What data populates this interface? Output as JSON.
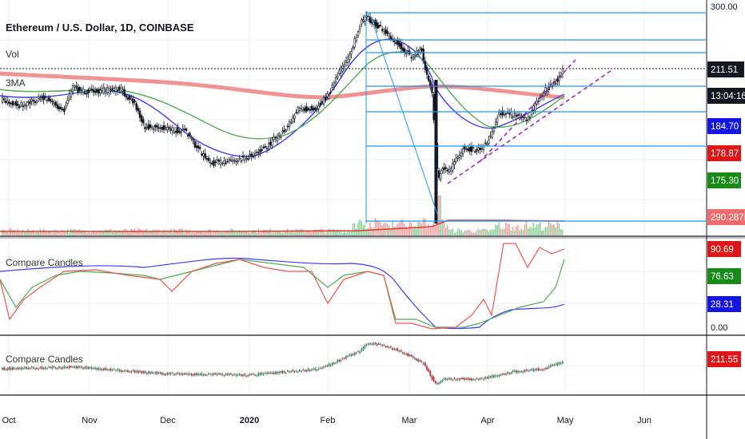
{
  "header": {
    "title": "Ethereum / U.S. Dollar, 1D, COINBASE",
    "vol_label": "Vol",
    "ma_label": "3MA",
    "compare_label_1": "Compare Candles",
    "compare_label_2": "Compare Candles"
  },
  "x_axis": {
    "labels": [
      "Oct",
      "Nov",
      "Dec",
      "2020",
      "Feb",
      "Mar",
      "Apr",
      "May",
      "Jun"
    ]
  },
  "price_axis": {
    "top_tick": "300.00",
    "last_price": "211.51",
    "countdown": "13:04:16",
    "ma_values": [
      {
        "text": "184.70",
        "color": "#1414e6"
      },
      {
        "text": "178.87",
        "color": "#e01616"
      },
      {
        "text": "175.30",
        "color": "#178a17"
      }
    ],
    "volume": "290.287K"
  },
  "osc_axis": {
    "values": [
      {
        "text": "90.69",
        "color": "#e01616"
      },
      {
        "text": "76.63",
        "color": "#178a17"
      },
      {
        "text": "28.31",
        "color": "#1414e6"
      }
    ],
    "zero": "0.00"
  },
  "compare_axis": {
    "value": "211.55",
    "color": "#e01616"
  },
  "colors": {
    "blue_ma": "#3b3bff",
    "red_ma": "#f08080",
    "green_ma": "#4caf50",
    "fib": "#2196f3",
    "trend": "#9c27b0"
  },
  "chart_data": {
    "type": "candlestick",
    "title": "Ethereum / U.S. Dollar, 1D, COINBASE",
    "x_labels": [
      "Oct",
      "Nov",
      "Dec",
      "2020",
      "Feb",
      "Mar",
      "Apr",
      "May",
      "Jun"
    ],
    "y_label_top": 300.0,
    "last_price": 211.51,
    "price_series_approx": [
      {
        "date": "Oct",
        "close": 175
      },
      {
        "date": "Nov",
        "close": 182
      },
      {
        "date": "Dec",
        "close": 147
      },
      {
        "date": "2020",
        "close": 130
      },
      {
        "date": "Feb",
        "close": 185
      },
      {
        "date": "Feb-mid",
        "close": 275
      },
      {
        "date": "Mar",
        "close": 230
      },
      {
        "date": "Mar-mid",
        "close": 110
      },
      {
        "date": "Apr",
        "close": 145
      },
      {
        "date": "May",
        "close": 211.51
      }
    ],
    "moving_averages": [
      {
        "name": "MA blue",
        "last": 184.7
      },
      {
        "name": "MA red",
        "last": 178.87
      },
      {
        "name": "MA green",
        "last": 175.3
      }
    ],
    "volume_last": "290.287K",
    "oscillator_last": [
      90.69,
      76.63,
      28.31
    ],
    "compare_last": 211.55
  }
}
